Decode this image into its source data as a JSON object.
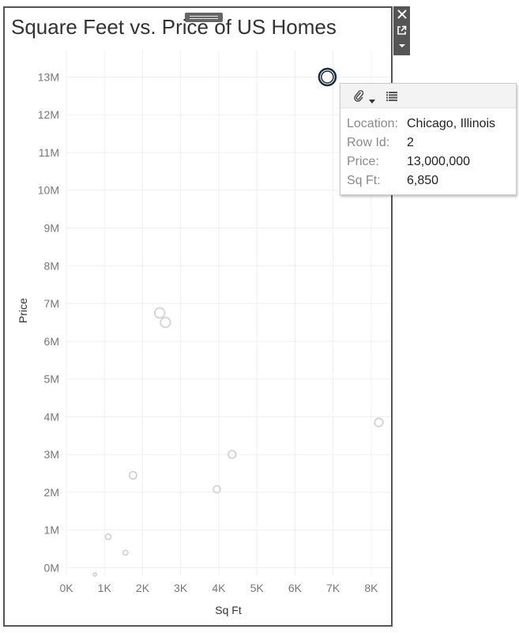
{
  "window": {
    "title": "Square Feet vs. Price of US Homes"
  },
  "toolbar": {
    "icons": [
      "close-icon",
      "open-external-icon",
      "dropdown-icon"
    ]
  },
  "tooltip": {
    "rows": [
      {
        "key": "Location:",
        "value": "Chicago, Illinois"
      },
      {
        "key": "Row Id:",
        "value": "2"
      },
      {
        "key": "Price:",
        "value": "13,000,000"
      },
      {
        "key": "Sq Ft:",
        "value": "6,850"
      }
    ],
    "icons": [
      "paperclip-icon",
      "dropdown-caret-icon",
      "table-view-icon"
    ]
  },
  "chart_data": {
    "type": "scatter",
    "title": "Square Feet vs. Price of US Homes",
    "xlabel": "Sq Ft",
    "ylabel": "Price",
    "xlim": [
      0,
      8500
    ],
    "ylim": [
      -200000,
      13700000
    ],
    "x_ticks": [
      0,
      1000,
      2000,
      3000,
      4000,
      5000,
      6000,
      7000,
      8000
    ],
    "x_tick_labels": [
      "0K",
      "1K",
      "2K",
      "3K",
      "4K",
      "5K",
      "6K",
      "7K",
      "8K"
    ],
    "y_ticks": [
      0,
      1000000,
      2000000,
      3000000,
      4000000,
      5000000,
      6000000,
      7000000,
      8000000,
      9000000,
      10000000,
      11000000,
      12000000,
      13000000
    ],
    "y_tick_labels": [
      "0M",
      "1M",
      "2M",
      "3M",
      "4M",
      "5M",
      "6M",
      "7M",
      "8M",
      "9M",
      "10M",
      "11M",
      "12M",
      "13M"
    ],
    "grid": true,
    "points": [
      {
        "x": 6850,
        "y": 13000000,
        "highlighted": true
      },
      {
        "x": 2450,
        "y": 6750000
      },
      {
        "x": 2600,
        "y": 6500000
      },
      {
        "x": 8200,
        "y": 3850000
      },
      {
        "x": 4350,
        "y": 3000000
      },
      {
        "x": 1750,
        "y": 2450000
      },
      {
        "x": 3950,
        "y": 2080000
      },
      {
        "x": 1100,
        "y": 820000
      },
      {
        "x": 1550,
        "y": 400000
      },
      {
        "x": 750,
        "y": -180000
      }
    ],
    "colors": {
      "highlight": "#1c2b3a",
      "muted": "#d6d6d6",
      "grid": "#efefef"
    }
  }
}
